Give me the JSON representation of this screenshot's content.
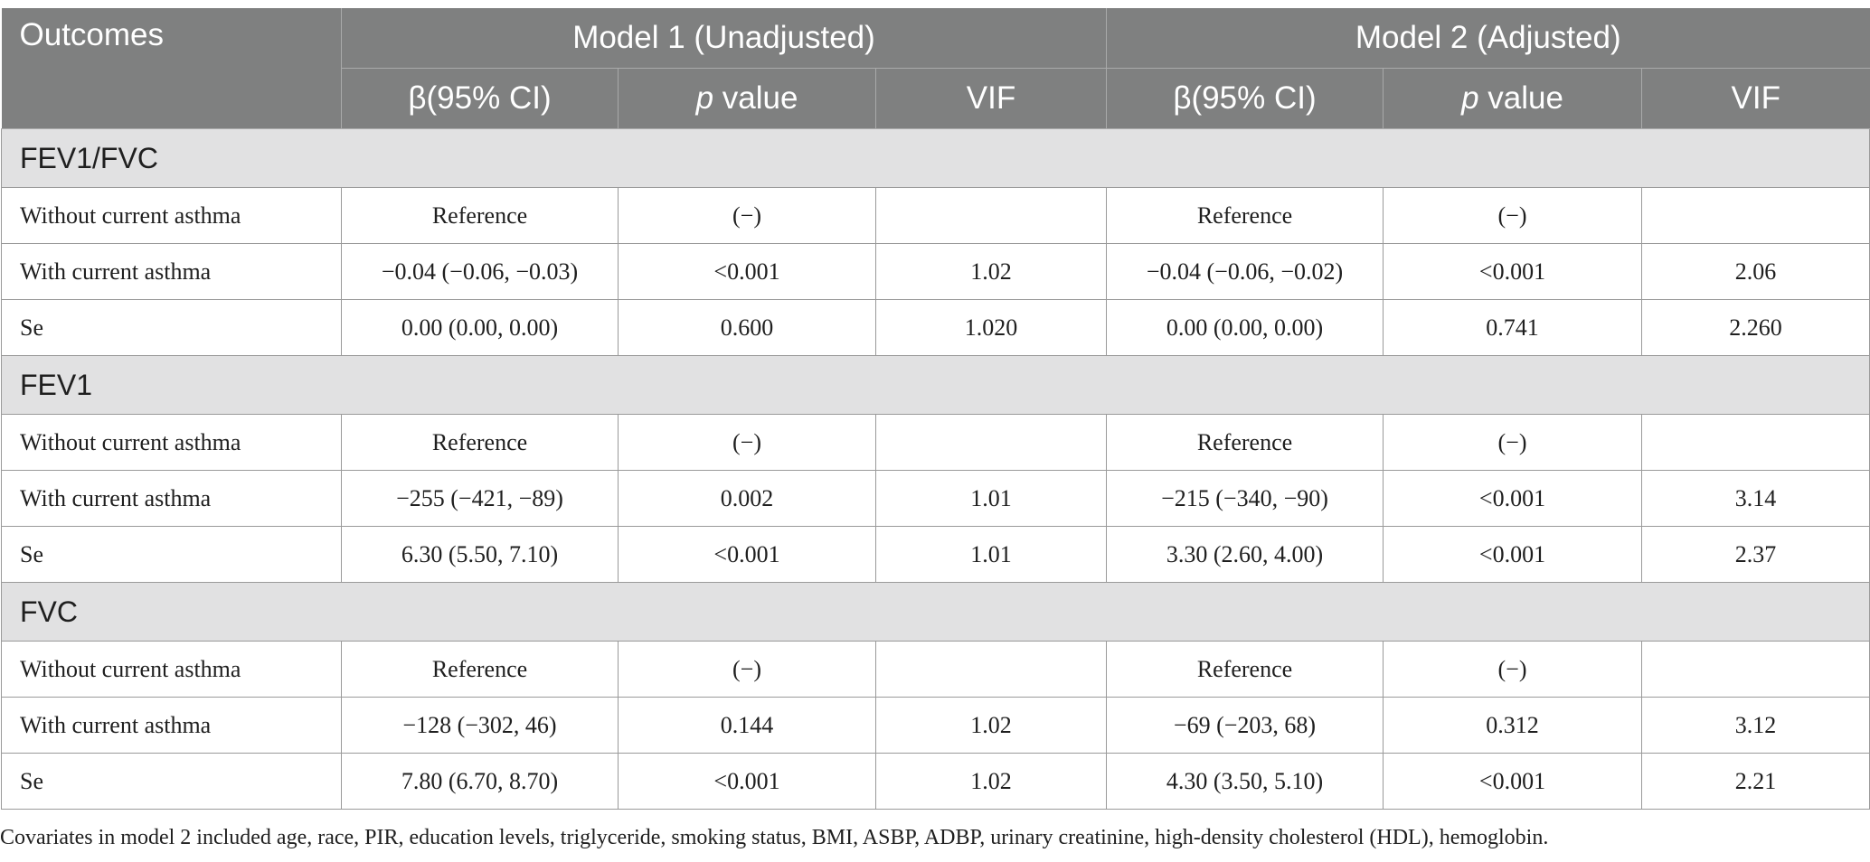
{
  "table": {
    "header": {
      "outcomes": "Outcomes",
      "model1": "Model 1 (Unadjusted)",
      "model2": "Model 2 (Adjusted)",
      "sub": {
        "beta": "β(95% CI)",
        "p_italic": "p",
        "p_rest": " value",
        "vif": "VIF"
      }
    },
    "groups": [
      {
        "name": "FEV1/FVC",
        "rows": [
          {
            "label": "Without current asthma",
            "m1_beta": "Reference",
            "m1_p": "(−)",
            "m1_vif": "",
            "m2_beta": "Reference",
            "m2_p": "(−)",
            "m2_vif": ""
          },
          {
            "label": "With current asthma",
            "m1_beta": "−0.04 (−0.06, −0.03)",
            "m1_p": "<0.001",
            "m1_vif": "1.02",
            "m2_beta": "−0.04 (−0.06, −0.02)",
            "m2_p": "<0.001",
            "m2_vif": "2.06"
          },
          {
            "label": "Se",
            "m1_beta": "0.00 (0.00, 0.00)",
            "m1_p": "0.600",
            "m1_vif": "1.020",
            "m2_beta": "0.00 (0.00, 0.00)",
            "m2_p": "0.741",
            "m2_vif": "2.260"
          }
        ]
      },
      {
        "name": "FEV1",
        "rows": [
          {
            "label": "Without current asthma",
            "m1_beta": "Reference",
            "m1_p": "(−)",
            "m1_vif": "",
            "m2_beta": "Reference",
            "m2_p": "(−)",
            "m2_vif": ""
          },
          {
            "label": "With current asthma",
            "m1_beta": "−255 (−421, −89)",
            "m1_p": "0.002",
            "m1_vif": "1.01",
            "m2_beta": "−215 (−340, −90)",
            "m2_p": "<0.001",
            "m2_vif": "3.14"
          },
          {
            "label": "Se",
            "m1_beta": "6.30 (5.50, 7.10)",
            "m1_p": "<0.001",
            "m1_vif": "1.01",
            "m2_beta": "3.30 (2.60, 4.00)",
            "m2_p": "<0.001",
            "m2_vif": "2.37"
          }
        ]
      },
      {
        "name": "FVC",
        "rows": [
          {
            "label": "Without current asthma",
            "m1_beta": "Reference",
            "m1_p": "(−)",
            "m1_vif": "",
            "m2_beta": "Reference",
            "m2_p": "(−)",
            "m2_vif": ""
          },
          {
            "label": "With current asthma",
            "m1_beta": "−128 (−302, 46)",
            "m1_p": "0.144",
            "m1_vif": "1.02",
            "m2_beta": "−69 (−203, 68)",
            "m2_p": "0.312",
            "m2_vif": "3.12"
          },
          {
            "label": "Se",
            "m1_beta": "7.80 (6.70, 8.70)",
            "m1_p": "<0.001",
            "m1_vif": "1.02",
            "m2_beta": "4.30 (3.50, 5.10)",
            "m2_p": "<0.001",
            "m2_vif": "2.21"
          }
        ]
      }
    ]
  },
  "footnote": "Covariates in model 2 included age, race, PIR, education levels, triglyceride, smoking status, BMI, ASBP, ADBP, urinary creatinine, high-density cholesterol (HDL), hemoglobin."
}
